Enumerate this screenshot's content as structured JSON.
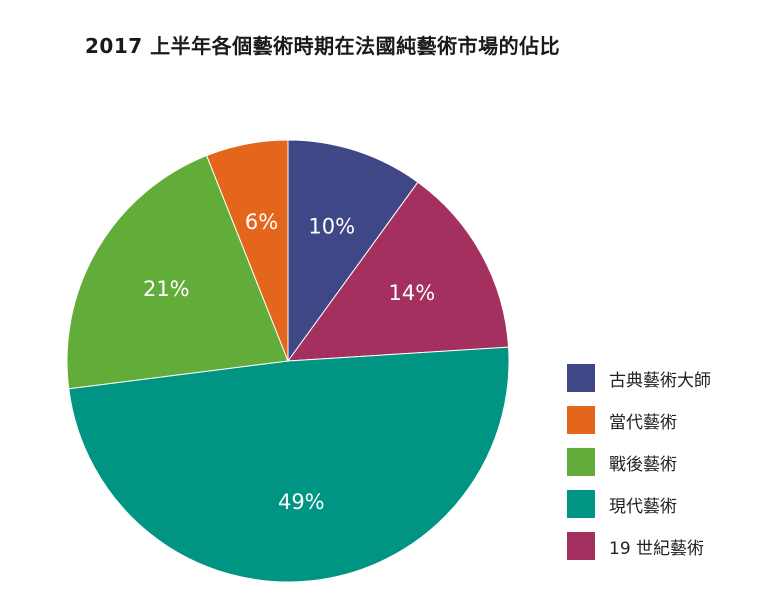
{
  "chart_data": {
    "type": "pie",
    "title": "2017 上半年各個藝術時期在法國純藝術市場的佔比",
    "legend_position": "bottom-right",
    "slices": [
      {
        "name": "古典藝術大師",
        "value": 10,
        "label": "10%",
        "color": "#3f4786"
      },
      {
        "name": "19 世紀藝術",
        "value": 14,
        "label": "14%",
        "color": "#a3305e"
      },
      {
        "name": "現代藝術",
        "value": 49,
        "label": "49%",
        "color": "#009483"
      },
      {
        "name": "戰後藝術",
        "value": 21,
        "label": "21%",
        "color": "#62ad39"
      },
      {
        "name": "當代藝術",
        "value": 6,
        "label": "6%",
        "color": "#e4661c"
      }
    ],
    "legend": [
      {
        "name": "古典藝術大師",
        "color": "#3f4786"
      },
      {
        "name": "當代藝術",
        "color": "#e4661c"
      },
      {
        "name": "戰後藝術",
        "color": "#62ad39"
      },
      {
        "name": "現代藝術",
        "color": "#009483"
      },
      {
        "name": "19 世紀藝術",
        "color": "#a3305e"
      }
    ]
  }
}
